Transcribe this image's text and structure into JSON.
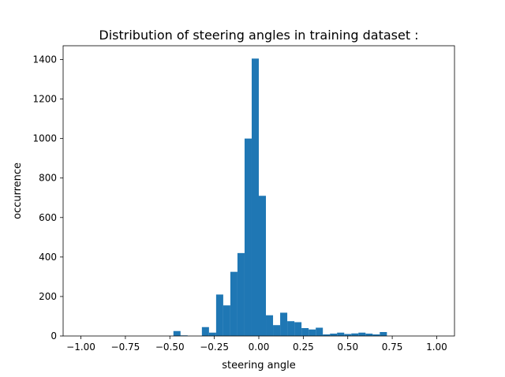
{
  "chart_data": {
    "type": "bar",
    "title": "Distribution of steering angles in training dataset :",
    "xlabel": "steering angle",
    "ylabel": "occurrence",
    "xlim": [
      -1.1,
      1.1
    ],
    "ylim": [
      0,
      1470
    ],
    "bin_width": 0.04,
    "bar_color": "#1f77b4",
    "grid": false,
    "legend": "none",
    "xticks": [
      {
        "value": -1.0,
        "label": "−1.00"
      },
      {
        "value": -0.75,
        "label": "−0.75"
      },
      {
        "value": -0.5,
        "label": "−0.50"
      },
      {
        "value": -0.25,
        "label": "−0.25"
      },
      {
        "value": 0.0,
        "label": "0.00"
      },
      {
        "value": 0.25,
        "label": "0.25"
      },
      {
        "value": 0.5,
        "label": "0.50"
      },
      {
        "value": 0.75,
        "label": "0.75"
      },
      {
        "value": 1.0,
        "label": "1.00"
      }
    ],
    "yticks": [
      {
        "value": 0,
        "label": "0"
      },
      {
        "value": 200,
        "label": "200"
      },
      {
        "value": 400,
        "label": "400"
      },
      {
        "value": 600,
        "label": "600"
      },
      {
        "value": 800,
        "label": "800"
      },
      {
        "value": 1000,
        "label": "1000"
      },
      {
        "value": 1200,
        "label": "1200"
      },
      {
        "value": 1400,
        "label": "1400"
      }
    ],
    "bins": [
      {
        "x": -0.46,
        "count": 25
      },
      {
        "x": -0.42,
        "count": 3
      },
      {
        "x": -0.3,
        "count": 45
      },
      {
        "x": -0.26,
        "count": 17
      },
      {
        "x": -0.22,
        "count": 210
      },
      {
        "x": -0.18,
        "count": 155
      },
      {
        "x": -0.14,
        "count": 325
      },
      {
        "x": -0.1,
        "count": 420
      },
      {
        "x": -0.06,
        "count": 1000
      },
      {
        "x": -0.02,
        "count": 1405
      },
      {
        "x": 0.02,
        "count": 710
      },
      {
        "x": 0.06,
        "count": 105
      },
      {
        "x": 0.1,
        "count": 55
      },
      {
        "x": 0.14,
        "count": 118
      },
      {
        "x": 0.18,
        "count": 75
      },
      {
        "x": 0.22,
        "count": 70
      },
      {
        "x": 0.26,
        "count": 40
      },
      {
        "x": 0.3,
        "count": 33
      },
      {
        "x": 0.34,
        "count": 42
      },
      {
        "x": 0.38,
        "count": 8
      },
      {
        "x": 0.42,
        "count": 12
      },
      {
        "x": 0.46,
        "count": 17
      },
      {
        "x": 0.5,
        "count": 10
      },
      {
        "x": 0.54,
        "count": 13
      },
      {
        "x": 0.58,
        "count": 17
      },
      {
        "x": 0.62,
        "count": 12
      },
      {
        "x": 0.66,
        "count": 8
      },
      {
        "x": 0.7,
        "count": 20
      }
    ]
  }
}
